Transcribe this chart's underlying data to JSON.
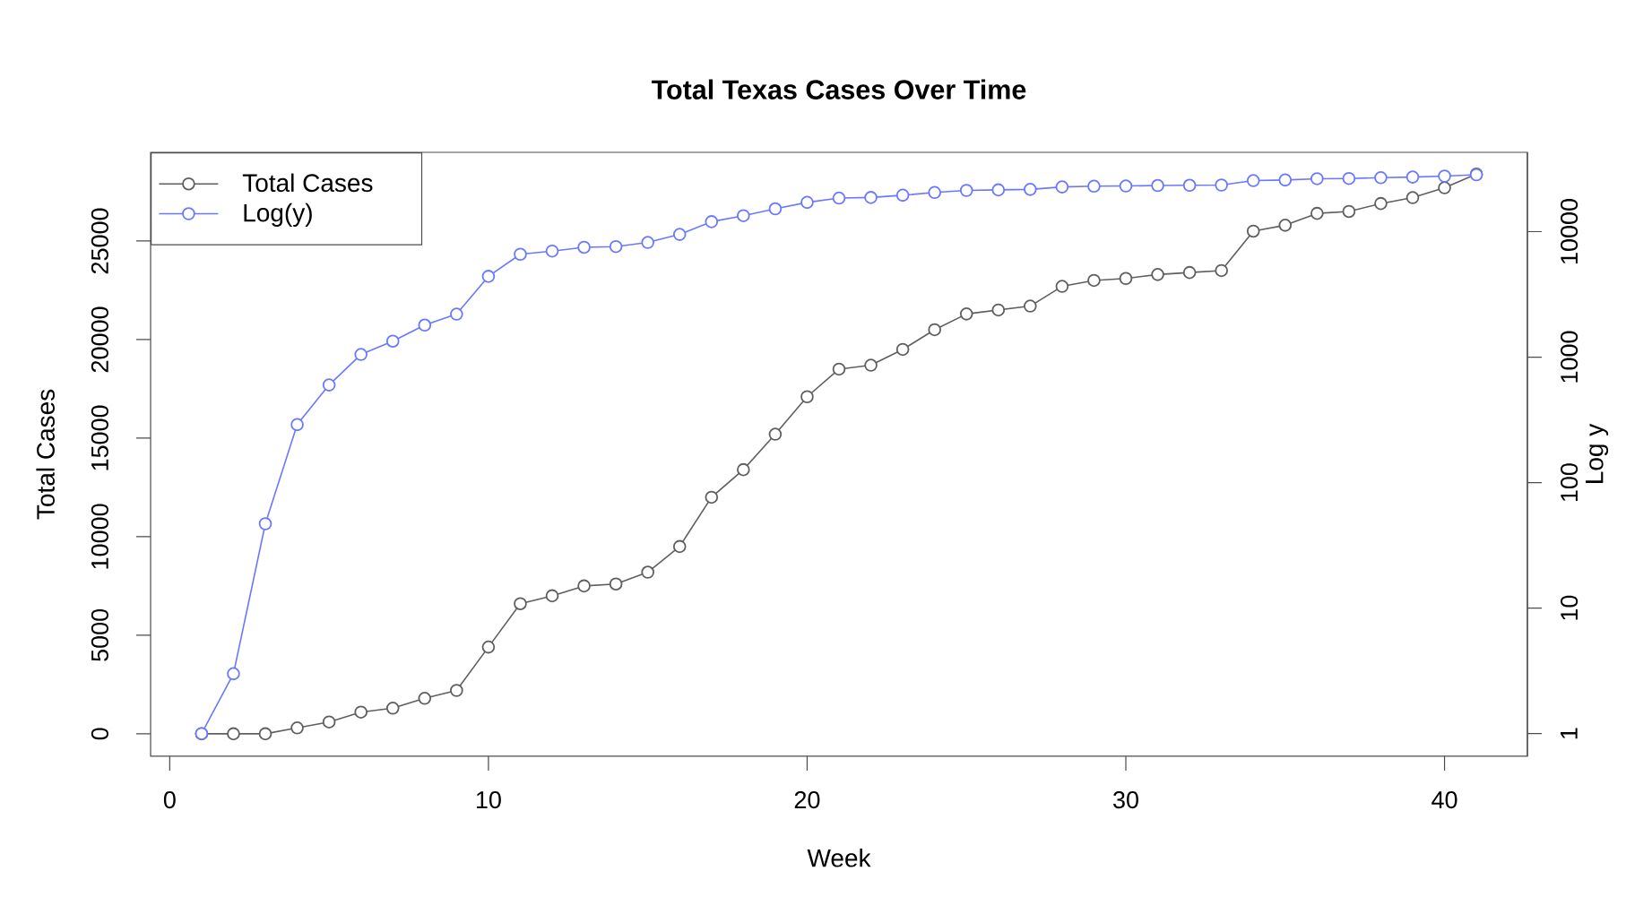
{
  "chart_data": {
    "type": "line",
    "title": "Total Texas Cases Over Time",
    "xlabel": "Week",
    "ylabel": "Total Cases",
    "y2label": "Log y",
    "x": [
      1,
      2,
      3,
      4,
      5,
      6,
      7,
      8,
      9,
      10,
      11,
      12,
      13,
      14,
      15,
      16,
      17,
      18,
      19,
      20,
      21,
      22,
      23,
      24,
      25,
      26,
      27,
      28,
      29,
      30,
      31,
      32,
      33,
      34,
      35,
      36,
      37,
      38,
      39,
      40,
      41
    ],
    "series": [
      {
        "name": "Total Cases",
        "color": "#5f5f5f",
        "values": [
          0,
          0,
          0,
          300,
          600,
          1100,
          1300,
          1800,
          2200,
          4400,
          6600,
          7000,
          7500,
          7600,
          8200,
          9500,
          12000,
          13400,
          15200,
          17100,
          18500,
          18700,
          19500,
          20500,
          21300,
          21500,
          21700,
          22700,
          23000,
          23100,
          23300,
          23400,
          23500,
          25500,
          25800,
          26400,
          26500,
          26900,
          27200,
          27700,
          28400
        ]
      },
      {
        "name": "Log(y)",
        "color": "#6a78ff",
        "axis": "y2",
        "values": [
          1,
          3,
          47,
          290,
          600,
          1050,
          1340,
          1800,
          2200,
          4400,
          6600,
          7000,
          7500,
          7600,
          8200,
          9500,
          12000,
          13400,
          15200,
          17100,
          18500,
          18700,
          19500,
          20500,
          21300,
          21500,
          21700,
          22700,
          23000,
          23100,
          23300,
          23400,
          23500,
          25500,
          25800,
          26400,
          26500,
          26900,
          27200,
          27700,
          28400
        ]
      }
    ],
    "xlim": [
      -0.6,
      42.6
    ],
    "xticks": [
      0,
      10,
      20,
      30,
      40
    ],
    "ylim": [
      -1140,
      29500
    ],
    "yticks": [
      0,
      5000,
      10000,
      15000,
      20000,
      25000
    ],
    "y2lim": [
      0.66,
      42850
    ],
    "y2ticks": [
      1,
      10,
      100,
      1000,
      10000
    ],
    "log": "y2",
    "marker": "circle",
    "line_style": "solid",
    "legend": "top left"
  }
}
